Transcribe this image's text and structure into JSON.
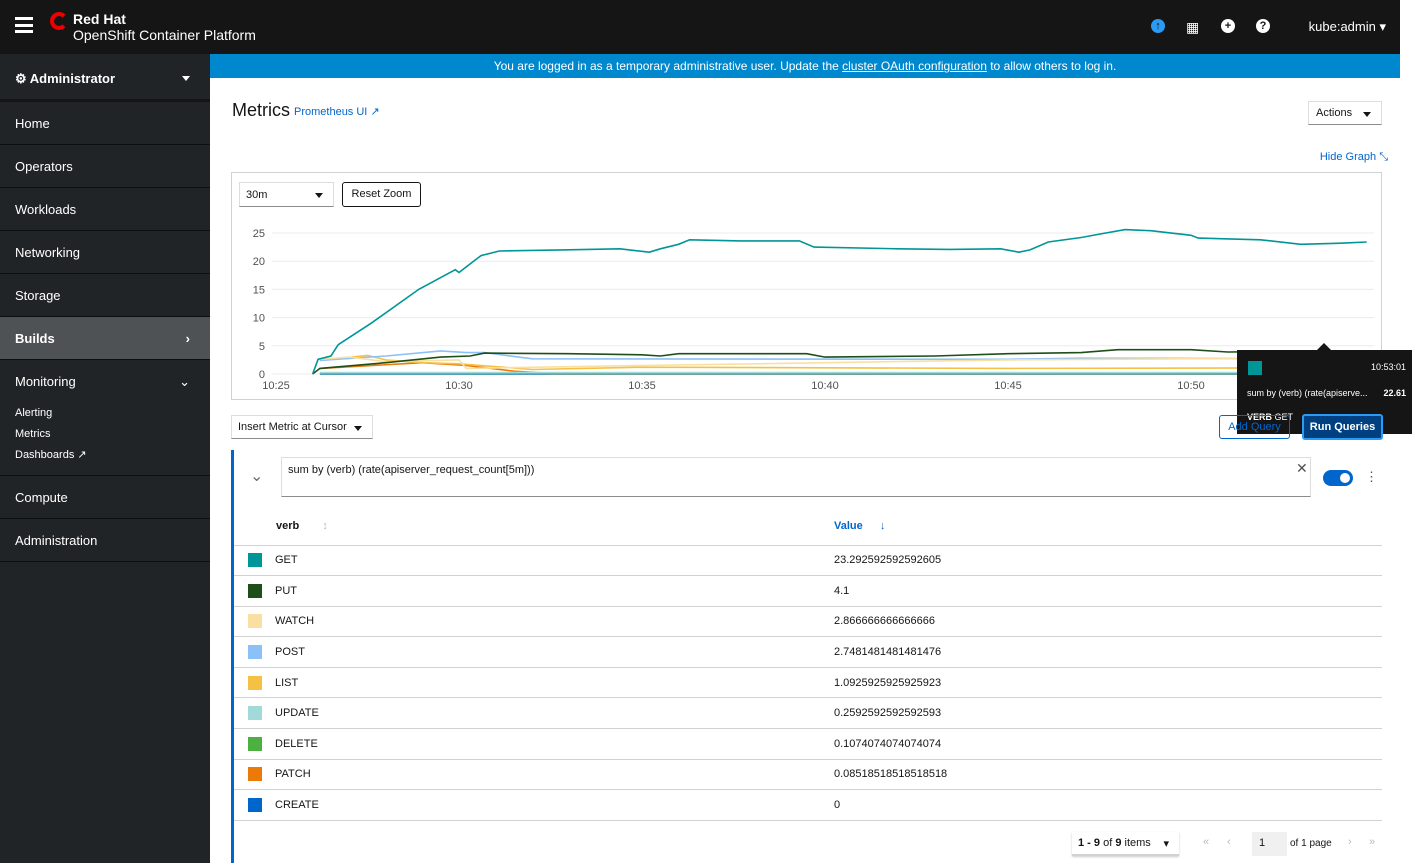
{
  "header": {
    "brand_line1": "Red Hat",
    "brand_line2": "OpenShift Container Platform",
    "user": "kube:admin",
    "icons": [
      "hamburger-icon",
      "cloud-upload-icon",
      "app-grid-icon",
      "plus-circle-icon",
      "help-icon"
    ]
  },
  "banner": {
    "pre": "You are logged in as a temporary administrative user. Update the ",
    "link": "cluster OAuth configuration",
    "post": " to allow others to log in."
  },
  "sidebar": {
    "perspective": "Administrator",
    "items": [
      {
        "label": "Home"
      },
      {
        "label": "Operators"
      },
      {
        "label": "Workloads"
      },
      {
        "label": "Networking"
      },
      {
        "label": "Storage"
      },
      {
        "label": "Builds"
      },
      {
        "label": "Monitoring"
      }
    ],
    "monitoring_sub": [
      "Alerting",
      "Metrics",
      "Dashboards"
    ],
    "items2": [
      {
        "label": "Compute"
      },
      {
        "label": "Administration"
      }
    ]
  },
  "page": {
    "title": "Metrics",
    "prometheus_link": "Prometheus UI",
    "actions": "Actions",
    "hide_graph": "Hide Graph",
    "time_range": "30m",
    "reset_zoom": "Reset Zoom",
    "insert_metric": "Insert Metric at Cursor",
    "add_query": "Add Query",
    "run_queries": "Run Queries",
    "query": "sum by (verb) (rate(apiserver_request_count[5m]))"
  },
  "tooltip": {
    "time": "10:53:01",
    "series": "sum by (verb) (rate(apiserve...",
    "value": "22.61",
    "label_key": "VERB",
    "label_value": "GET",
    "color": "#009596"
  },
  "table": {
    "columns": [
      "verb",
      "Value"
    ],
    "rows": [
      {
        "verb": "GET",
        "value": "23.292592592592605",
        "color": "#009596"
      },
      {
        "verb": "PUT",
        "value": "4.1",
        "color": "#1e4f18"
      },
      {
        "verb": "WATCH",
        "value": "2.866666666666666",
        "color": "#f9e0a2"
      },
      {
        "verb": "POST",
        "value": "2.7481481481481476",
        "color": "#8bc1f7"
      },
      {
        "verb": "LIST",
        "value": "1.0925925925925923",
        "color": "#f4c145"
      },
      {
        "verb": "UPDATE",
        "value": "0.2592592592592593",
        "color": "#a2d9d9"
      },
      {
        "verb": "DELETE",
        "value": "0.1074074074074074",
        "color": "#4cb140"
      },
      {
        "verb": "PATCH",
        "value": "0.08518518518518518",
        "color": "#ec7a08"
      },
      {
        "verb": "CREATE",
        "value": "0",
        "color": "#0066cc"
      }
    ]
  },
  "pagination": {
    "range": "1 - 9",
    "of": "of",
    "total": "9",
    "items": "items",
    "page": "1",
    "of_pages": "of 1 page"
  },
  "chart_data": {
    "type": "line",
    "ylim": [
      0,
      25
    ],
    "yticks": [
      "0",
      "5",
      "10",
      "15",
      "20",
      "25"
    ],
    "xticks": [
      "10:25",
      "10:30",
      "10:35",
      "10:40",
      "10:45",
      "10:50"
    ],
    "grid": true,
    "series": [
      {
        "name": "GET",
        "color": "#009596",
        "points": [
          [
            "10:26:00",
            0
          ],
          [
            "10:26:09",
            2.6
          ],
          [
            "10:26:30",
            3.2
          ],
          [
            "10:26:42",
            5.2
          ],
          [
            "10:27:36",
            9
          ],
          [
            "10:28:54",
            15
          ],
          [
            "10:29:54",
            18.5
          ],
          [
            "10:30:00",
            18
          ],
          [
            "10:30:18",
            19.5
          ],
          [
            "10:30:36",
            21
          ],
          [
            "10:31:06",
            21.8
          ],
          [
            "10:32:48",
            22
          ],
          [
            "10:34:24",
            22.2
          ],
          [
            "10:35:12",
            21.6
          ],
          [
            "10:35:30",
            22.2
          ],
          [
            "10:36:00",
            23
          ],
          [
            "10:36:18",
            23.8
          ],
          [
            "10:37:42",
            23.6
          ],
          [
            "10:39:18",
            23.6
          ],
          [
            "10:39:42",
            22.5
          ],
          [
            "10:42:00",
            22.2
          ],
          [
            "10:43:24",
            22.1
          ],
          [
            "10:44:48",
            22.2
          ],
          [
            "10:45:18",
            21.6
          ],
          [
            "10:45:36",
            22
          ],
          [
            "10:46:06",
            23.4
          ],
          [
            "10:47:00",
            24.2
          ],
          [
            "10:47:30",
            24.8
          ],
          [
            "10:48:12",
            25.6
          ],
          [
            "10:48:54",
            25.4
          ],
          [
            "10:50:00",
            24.6
          ],
          [
            "10:50:12",
            24.1
          ],
          [
            "10:51:54",
            23.8
          ],
          [
            "10:53:00",
            23
          ],
          [
            "10:54:06",
            23.2
          ],
          [
            "10:54:48",
            23.4
          ]
        ]
      },
      {
        "name": "PUT",
        "color": "#1e4f18",
        "points": [
          [
            "10:26:00",
            0
          ],
          [
            "10:26:12",
            1
          ],
          [
            "10:28:00",
            2
          ],
          [
            "10:29:30",
            3
          ],
          [
            "10:30:18",
            3.2
          ],
          [
            "10:30:42",
            3.7
          ],
          [
            "10:33:00",
            3.6
          ],
          [
            "10:35:00",
            3.4
          ],
          [
            "10:35:30",
            3.2
          ],
          [
            "10:36:00",
            3.6
          ],
          [
            "10:39:30",
            3.6
          ],
          [
            "10:40:00",
            3
          ],
          [
            "10:43:00",
            3.2
          ],
          [
            "10:45:00",
            3.6
          ],
          [
            "10:47:00",
            3.8
          ],
          [
            "10:48:00",
            4.3
          ],
          [
            "10:50:00",
            4.3
          ],
          [
            "10:51:00",
            3.9
          ],
          [
            "10:54:48",
            4.1
          ]
        ]
      },
      {
        "name": "WATCH",
        "color": "#f9e0a2",
        "points": [
          [
            "10:26:12",
            2.6
          ],
          [
            "10:27:00",
            3
          ],
          [
            "10:28:00",
            2.2
          ],
          [
            "10:30:00",
            2.5
          ],
          [
            "10:30:12",
            1
          ],
          [
            "10:35:00",
            1.5
          ],
          [
            "10:45:00",
            2.5
          ],
          [
            "10:54:48",
            2.9
          ]
        ]
      },
      {
        "name": "POST",
        "color": "#8bc1f7",
        "points": [
          [
            "10:26:12",
            2.4
          ],
          [
            "10:28:00",
            3.2
          ],
          [
            "10:29:30",
            4.1
          ],
          [
            "10:30:12",
            3.8
          ],
          [
            "10:30:42",
            3.8
          ],
          [
            "10:32:00",
            2.7
          ],
          [
            "10:45:00",
            2.6
          ],
          [
            "10:47:00",
            2.8
          ],
          [
            "10:54:48",
            2.7
          ]
        ]
      },
      {
        "name": "LIST",
        "color": "#f4c145",
        "points": [
          [
            "10:26:12",
            2.4
          ],
          [
            "10:27:30",
            3.3
          ],
          [
            "10:28:00",
            2.5
          ],
          [
            "10:29:00",
            2
          ],
          [
            "10:30:00",
            1.8
          ],
          [
            "10:32:00",
            0.8
          ],
          [
            "10:35:00",
            1.2
          ],
          [
            "10:45:00",
            1
          ],
          [
            "10:54:48",
            1.1
          ]
        ]
      },
      {
        "name": "UPDATE",
        "color": "#a2d9d9",
        "points": [
          [
            "10:26:12",
            0.25
          ],
          [
            "10:54:48",
            0.26
          ]
        ]
      },
      {
        "name": "DELETE",
        "color": "#4cb140",
        "points": [
          [
            "10:26:12",
            0.1
          ],
          [
            "10:54:48",
            0.11
          ]
        ]
      },
      {
        "name": "PATCH",
        "color": "#ec7a08",
        "points": [
          [
            "10:26:12",
            1
          ],
          [
            "10:29:00",
            2
          ],
          [
            "10:30:12",
            1.5
          ],
          [
            "10:31:30",
            0.5
          ],
          [
            "10:32:30",
            0.1
          ],
          [
            "10:54:48",
            0.09
          ]
        ]
      },
      {
        "name": "CREATE",
        "color": "#0066cc",
        "points": [
          [
            "10:26:12",
            0
          ],
          [
            "10:54:48",
            0
          ]
        ]
      }
    ]
  }
}
